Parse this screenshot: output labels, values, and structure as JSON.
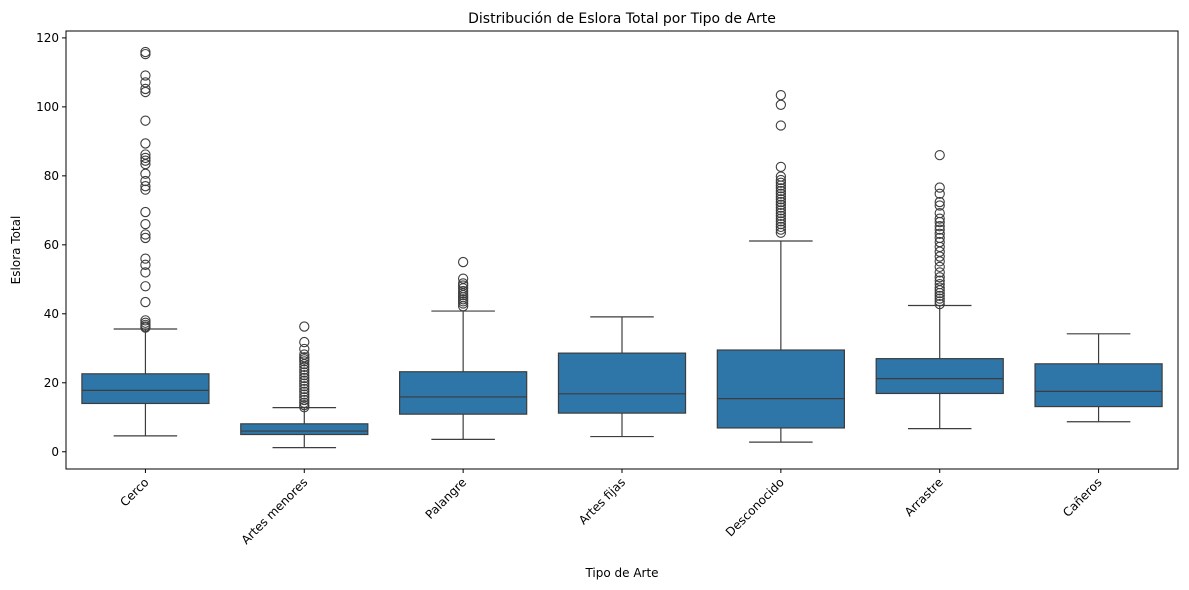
{
  "chart_data": {
    "type": "box",
    "title": "Distribución de Eslora Total por Tipo de Arte",
    "xlabel": "Tipo de Arte",
    "ylabel": "Eslora Total",
    "ylim": [
      -5,
      122
    ],
    "yticks": [
      0,
      20,
      40,
      60,
      80,
      100,
      120
    ],
    "categories": [
      "Cerco",
      "Artes menores",
      "Palangre",
      "Artes fijas",
      "Desconocido",
      "Arrastre",
      "Cañeros"
    ],
    "box_color": "#2e75a8",
    "line_color": "#3d3d3d",
    "grid": false,
    "boxes": [
      {
        "category": "Cerco",
        "whislo": 4.6,
        "q1": 14.0,
        "med": 17.8,
        "q3": 22.6,
        "whishi": 35.6,
        "fliers": [
          36.0,
          36.3,
          36.8,
          37.4,
          38.1,
          43.4,
          48.0,
          52.0,
          54.2,
          56.0,
          62.0,
          63.0,
          66.0,
          69.5,
          76.0,
          77.0,
          78.5,
          80.6,
          83.4,
          84.4,
          85.2,
          86.2,
          89.4,
          96.0,
          104.3,
          105.2,
          107.1,
          109.1,
          115.3,
          115.9
        ]
      },
      {
        "category": "Artes menores",
        "whislo": 1.2,
        "q1": 5.0,
        "med": 6.0,
        "q3": 8.1,
        "whishi": 12.8,
        "fliers": [
          12.9,
          13.5,
          14.2,
          15.0,
          15.8,
          16.6,
          17.4,
          18.2,
          19.0,
          19.8,
          20.6,
          21.4,
          22.2,
          23.0,
          23.8,
          24.6,
          25.4,
          26.2,
          26.8,
          27.4,
          28.2,
          29.8,
          31.8,
          36.3
        ]
      },
      {
        "category": "Palangre",
        "whislo": 3.6,
        "q1": 10.9,
        "med": 15.9,
        "q3": 23.2,
        "whishi": 40.8,
        "fliers": [
          42.2,
          43.0,
          43.6,
          44.2,
          44.8,
          45.4,
          46.0,
          46.6,
          47.4,
          48.2,
          48.8,
          50.2,
          55.0
        ]
      },
      {
        "category": "Artes fijas",
        "whislo": 4.4,
        "q1": 11.2,
        "med": 16.8,
        "q3": 28.6,
        "whishi": 39.1,
        "fliers": []
      },
      {
        "category": "Desconocido",
        "whislo": 2.8,
        "q1": 6.9,
        "med": 15.4,
        "q3": 29.5,
        "whishi": 61.1,
        "fliers": [
          63.5,
          64.4,
          65.2,
          66.0,
          66.8,
          67.6,
          68.4,
          69.2,
          70.0,
          70.8,
          71.6,
          72.4,
          73.2,
          74.0,
          74.8,
          75.6,
          76.4,
          77.2,
          78.0,
          78.8,
          79.8,
          82.6,
          94.6,
          100.6,
          103.4
        ]
      },
      {
        "category": "Arrastre",
        "whislo": 6.7,
        "q1": 16.9,
        "med": 21.2,
        "q3": 27.0,
        "whishi": 42.4,
        "fliers": [
          42.8,
          43.6,
          44.4,
          45.2,
          46.0,
          46.8,
          47.6,
          48.6,
          49.6,
          50.6,
          52.0,
          53.6,
          55.2,
          56.6,
          58.0,
          59.4,
          60.8,
          62.0,
          63.2,
          64.4,
          65.4,
          66.6,
          67.6,
          69.2,
          71.4,
          72.4,
          74.8,
          76.6,
          86.0
        ]
      },
      {
        "category": "Cañeros",
        "whislo": 8.7,
        "q1": 13.1,
        "med": 17.5,
        "q3": 25.5,
        "whishi": 34.2,
        "fliers": []
      }
    ]
  }
}
